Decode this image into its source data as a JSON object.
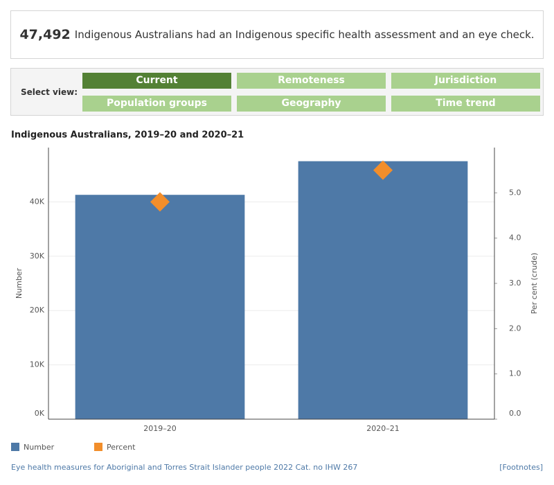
{
  "header": {
    "number": "47,492",
    "text": "Indigenous Australians had an Indigenous specific health assessment and an eye check."
  },
  "controls": {
    "label": "Select view:",
    "buttons": [
      "Current",
      "Remoteness",
      "Jurisdiction",
      "Population groups",
      "Geography",
      "Time trend"
    ]
  },
  "chart_data": {
    "type": "bar",
    "title": "Indigenous Australians, 2019–20 and 2020–21",
    "categories": [
      "2019–20",
      "2020–21"
    ],
    "series": [
      {
        "name": "Number",
        "color": "#4e79a7",
        "values": [
          41300,
          47492
        ]
      },
      {
        "name": "Percent",
        "color": "#f28e2b",
        "axis": "y2",
        "values": [
          4.8,
          5.5
        ]
      }
    ],
    "y_label": "Number",
    "y2_label": "Per cent (crude)",
    "ylim": [
      0,
      50000
    ],
    "yticks": [
      {
        "value": 0,
        "label": "0K"
      },
      {
        "value": 10000,
        "label": "10K"
      },
      {
        "value": 20000,
        "label": "20K"
      },
      {
        "value": 30000,
        "label": "30K"
      },
      {
        "value": 40000,
        "label": "40K"
      }
    ],
    "y2lim": [
      0,
      6
    ],
    "y2ticks": [
      {
        "value": 0,
        "label": "0.0"
      },
      {
        "value": 1,
        "label": "1.0"
      },
      {
        "value": 2,
        "label": "2.0"
      },
      {
        "value": 3,
        "label": "3.0"
      },
      {
        "value": 4,
        "label": "4.0"
      },
      {
        "value": 5,
        "label": "5.0"
      }
    ],
    "grid": true
  },
  "footer": {
    "source": "Eye health measures for Aboriginal and Torres Strait Islander people 2022 Cat. no IHW 267",
    "link": "[Footnotes]"
  }
}
